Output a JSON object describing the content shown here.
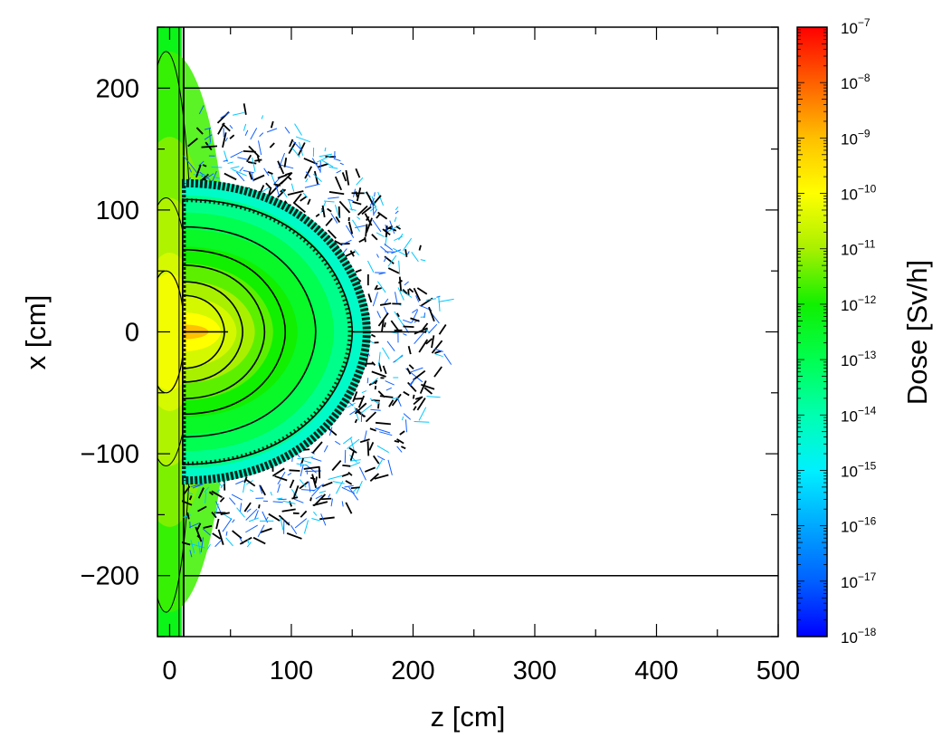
{
  "chart_data": {
    "type": "heatmap",
    "title": "",
    "xlabel": "z [cm]",
    "ylabel": "x [cm]",
    "xlim": [
      -10,
      500
    ],
    "ylim": [
      -250,
      250
    ],
    "xticks": [
      0,
      100,
      200,
      300,
      400,
      500
    ],
    "xtick_labels": [
      "0",
      "100",
      "200",
      "300",
      "400",
      "500"
    ],
    "yticks": [
      -200,
      -100,
      0,
      100,
      200
    ],
    "ytick_labels": [
      "−200",
      "−100",
      "0",
      "100",
      "200"
    ],
    "grid": false,
    "colorbar": {
      "label": "Dose [Sv/h]",
      "scale": "log",
      "range_log10": [
        -18,
        -7
      ],
      "ticks": [
        {
          "log": -7,
          "base": "10",
          "exp": "−7"
        },
        {
          "log": -8,
          "base": "10",
          "exp": "−8"
        },
        {
          "log": -9,
          "base": "10",
          "exp": "−9"
        },
        {
          "log": -10,
          "base": "10",
          "exp": "−10"
        },
        {
          "log": -11,
          "base": "10",
          "exp": "−11"
        },
        {
          "log": -12,
          "base": "10",
          "exp": "−12"
        },
        {
          "log": -13,
          "base": "10",
          "exp": "−13"
        },
        {
          "log": -14,
          "base": "10",
          "exp": "−14"
        },
        {
          "log": -15,
          "base": "10",
          "exp": "−15"
        },
        {
          "log": -16,
          "base": "10",
          "exp": "−16"
        },
        {
          "log": -17,
          "base": "10",
          "exp": "−17"
        },
        {
          "log": -18,
          "base": "10",
          "exp": "−18"
        }
      ]
    },
    "boundaries_x": [
      -200,
      200
    ],
    "slab_z": [
      -10,
      10
    ],
    "dose_regions": [
      {
        "log_dose": -14.3,
        "z_max": 165,
        "x_half": 125
      },
      {
        "log_dose": -13.6,
        "z_max": 150,
        "x_half": 112
      },
      {
        "log_dose": -13.0,
        "z_max": 135,
        "x_half": 98
      },
      {
        "log_dose": -12.5,
        "z_max": 120,
        "x_half": 84
      },
      {
        "log_dose": -12.0,
        "z_max": 105,
        "x_half": 70
      },
      {
        "log_dose": -11.5,
        "z_max": 85,
        "x_half": 56
      },
      {
        "log_dose": -11.0,
        "z_max": 70,
        "x_half": 42
      },
      {
        "log_dose": -10.5,
        "z_max": 55,
        "x_half": 29
      },
      {
        "log_dose": -10.0,
        "z_max": 42,
        "x_half": 16
      },
      {
        "log_dose": -9.0,
        "z_max": 32,
        "x_half": 6
      }
    ],
    "contour_z_max": [
      150,
      120,
      95,
      78,
      60,
      45
    ],
    "colormap": [
      {
        "log": -18,
        "color": "#0000ff"
      },
      {
        "log": -17,
        "color": "#0060ff"
      },
      {
        "log": -16,
        "color": "#00a8ff"
      },
      {
        "log": -15,
        "color": "#00f0ff"
      },
      {
        "log": -14,
        "color": "#00ffb0"
      },
      {
        "log": -13,
        "color": "#00ff50"
      },
      {
        "log": -12,
        "color": "#10f000"
      },
      {
        "log": -11,
        "color": "#a8f000"
      },
      {
        "log": -10,
        "color": "#ffff00"
      },
      {
        "log": -9,
        "color": "#ffc000"
      },
      {
        "log": -8,
        "color": "#ff6000"
      },
      {
        "log": -7,
        "color": "#ff0000"
      }
    ]
  }
}
